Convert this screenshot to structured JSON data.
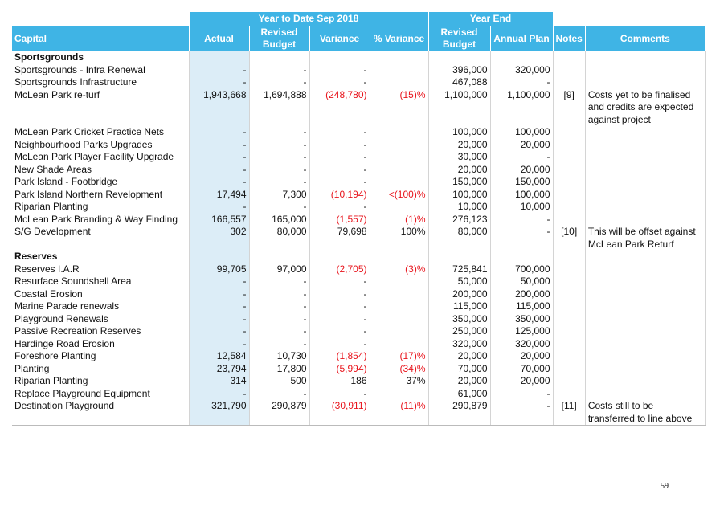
{
  "table": {
    "group_headers": [
      "Year to Date Sep 2018",
      "Year End"
    ],
    "columns": [
      "Capital",
      "Actual",
      "Revised Budget",
      "Variance",
      "% Variance",
      "Revised Budget",
      "Annual Plan",
      "Notes",
      "Comments"
    ],
    "rows": [
      {
        "section": "Sportsgrounds"
      },
      {
        "capital": "Sportsgrounds - Infra Renewal",
        "actual": "-",
        "revised_budget": "-",
        "variance": "-",
        "ye_revised_budget": "396,000",
        "annual_plan": "320,000"
      },
      {
        "capital": "Sportsgrounds Infrastructure",
        "actual": "-",
        "revised_budget": "-",
        "variance": "-",
        "ye_revised_budget": "467,088",
        "annual_plan": "-"
      },
      {
        "capital": "McLean Park re-turf",
        "actual": "1,943,668",
        "revised_budget": "1,694,888",
        "variance": "(248,780)",
        "pct_variance": "(15)%",
        "ye_revised_budget": "1,100,000",
        "annual_plan": "1,100,000",
        "notes": "[9]",
        "comments": "Costs yet to be finalised and credits are expected against project"
      },
      {
        "capital": "McLean Park Cricket Practice Nets",
        "actual": "-",
        "revised_budget": "-",
        "variance": "-",
        "ye_revised_budget": "100,000",
        "annual_plan": "100,000"
      },
      {
        "capital": "Neighbourhood Parks Upgrades",
        "actual": "-",
        "revised_budget": "-",
        "variance": "-",
        "ye_revised_budget": "20,000",
        "annual_plan": "20,000"
      },
      {
        "capital": "McLean Park Player Facility Upgrade",
        "actual": "-",
        "revised_budget": "-",
        "variance": "-",
        "ye_revised_budget": "30,000",
        "annual_plan": "-"
      },
      {
        "capital": "New Shade Areas",
        "actual": "-",
        "revised_budget": "-",
        "variance": "-",
        "ye_revised_budget": "20,000",
        "annual_plan": "20,000"
      },
      {
        "capital": "Park Island - Footbridge",
        "actual": "-",
        "revised_budget": "-",
        "variance": "-",
        "ye_revised_budget": "150,000",
        "annual_plan": "150,000"
      },
      {
        "capital": "Park Island Northern Revelopment",
        "actual": "17,494",
        "revised_budget": "7,300",
        "variance": "(10,194)",
        "pct_variance": "<(100)%",
        "ye_revised_budget": "100,000",
        "annual_plan": "100,000"
      },
      {
        "capital": "Riparian Planting",
        "actual": "-",
        "revised_budget": "-",
        "variance": "-",
        "ye_revised_budget": "10,000",
        "annual_plan": "10,000"
      },
      {
        "capital": "McLean Park Branding & Way Finding",
        "actual": "166,557",
        "revised_budget": "165,000",
        "variance": "(1,557)",
        "pct_variance": "(1)%",
        "ye_revised_budget": "276,123",
        "annual_plan": "-"
      },
      {
        "capital": "S/G Development",
        "actual": "302",
        "revised_budget": "80,000",
        "variance": "79,698",
        "pct_variance": "100%",
        "ye_revised_budget": "80,000",
        "annual_plan": "-",
        "notes": "[10]",
        "comments": "This will be offset against McLean Park Returf"
      },
      {
        "section": "Reserves"
      },
      {
        "capital": "Reserves I.A.R",
        "actual": "99,705",
        "revised_budget": "97,000",
        "variance": "(2,705)",
        "pct_variance": "(3)%",
        "ye_revised_budget": "725,841",
        "annual_plan": "700,000"
      },
      {
        "capital": "Resurface Soundshell Area",
        "actual": "-",
        "revised_budget": "-",
        "variance": "-",
        "ye_revised_budget": "50,000",
        "annual_plan": "50,000"
      },
      {
        "capital": "Coastal Erosion",
        "actual": "-",
        "revised_budget": "-",
        "variance": "-",
        "ye_revised_budget": "200,000",
        "annual_plan": "200,000"
      },
      {
        "capital": "Marine Parade renewals",
        "actual": "-",
        "revised_budget": "-",
        "variance": "-",
        "ye_revised_budget": "115,000",
        "annual_plan": "115,000"
      },
      {
        "capital": "Playground Renewals",
        "actual": "-",
        "revised_budget": "-",
        "variance": "-",
        "ye_revised_budget": "350,000",
        "annual_plan": "350,000"
      },
      {
        "capital": "Passive Recreation Reserves",
        "actual": "-",
        "revised_budget": "-",
        "variance": "-",
        "ye_revised_budget": "250,000",
        "annual_plan": "125,000"
      },
      {
        "capital": "Hardinge Road Erosion",
        "actual": "-",
        "revised_budget": "-",
        "variance": "-",
        "ye_revised_budget": "320,000",
        "annual_plan": "320,000"
      },
      {
        "capital": "Foreshore Planting",
        "actual": "12,584",
        "revised_budget": "10,730",
        "variance": "(1,854)",
        "pct_variance": "(17)%",
        "ye_revised_budget": "20,000",
        "annual_plan": "20,000"
      },
      {
        "capital": "Planting",
        "actual": "23,794",
        "revised_budget": "17,800",
        "variance": "(5,994)",
        "pct_variance": "(34)%",
        "ye_revised_budget": "70,000",
        "annual_plan": "70,000"
      },
      {
        "capital": "Riparian Planting",
        "actual": "314",
        "revised_budget": "500",
        "variance": "186",
        "pct_variance": "37%",
        "ye_revised_budget": "20,000",
        "annual_plan": "20,000"
      },
      {
        "capital": "Replace Playground Equipment",
        "actual": "-",
        "revised_budget": "-",
        "variance": "-",
        "ye_revised_budget": "61,000",
        "annual_plan": "-"
      },
      {
        "capital": "Destination Playground",
        "actual": "321,790",
        "revised_budget": "290,879",
        "variance": "(30,911)",
        "pct_variance": "(11)%",
        "ye_revised_budget": "290,879",
        "annual_plan": "-",
        "notes": "[11]",
        "comments": "Costs still to be transferred to line above"
      }
    ]
  },
  "page_number": "59"
}
